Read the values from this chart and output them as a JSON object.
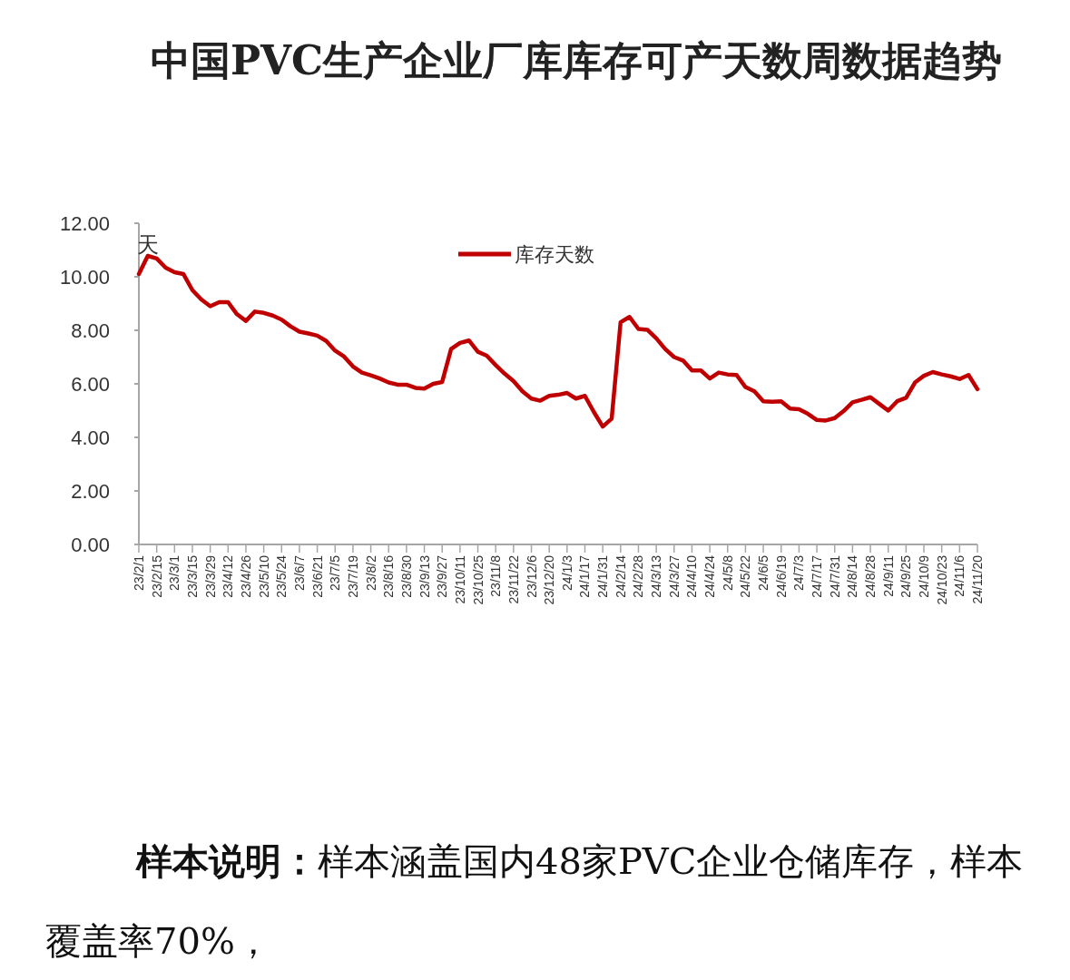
{
  "chart_data": {
    "type": "line",
    "title": "中国PVC生产企业厂库库存可产天数周数据趋势",
    "ylabel": "天",
    "annotations": [
      "样本说明：",
      "样本涵盖国内48家PVC企业仓储库存，样本覆盖率70%，"
    ],
    "categories": [
      "23/2/1",
      null,
      "23/2/15",
      null,
      "23/3/1",
      null,
      "23/3/15",
      null,
      "23/3/29",
      null,
      "23/4/12",
      null,
      "23/4/26",
      null,
      "23/5/10",
      null,
      "23/5/24",
      null,
      "23/6/7",
      null,
      "23/6/21",
      null,
      "23/7/5",
      null,
      "23/7/19",
      null,
      "23/8/2",
      null,
      "23/8/16",
      null,
      "23/8/30",
      null,
      "23/9/13",
      null,
      "23/9/27",
      null,
      "23/10/11",
      null,
      "23/10/25",
      null,
      "23/11/8",
      null,
      "23/11/22",
      null,
      "23/12/6",
      null,
      "23/12/20",
      null,
      "24/1/3",
      null,
      "24/1/17",
      null,
      "24/1/31",
      null,
      "24/2/14",
      null,
      "24/2/28",
      null,
      "24/3/13",
      null,
      "24/3/27",
      null,
      "24/4/10",
      null,
      "24/4/24",
      null,
      "24/5/8",
      null,
      "24/5/22",
      null,
      "24/6/5",
      null,
      "24/6/19",
      null,
      "24/7/3",
      null,
      "24/7/17",
      null,
      "24/7/31",
      null,
      "24/8/14",
      null,
      "24/8/28",
      null,
      "24/9/11",
      null,
      "24/9/25",
      null,
      "24/10/9",
      null,
      "24/10/23",
      null,
      "24/11/6",
      null,
      "24/11/20"
    ],
    "series": [
      {
        "name": "库存天数",
        "color": "#c00000",
        "values": [
          10.1,
          10.78,
          10.68,
          10.34,
          10.17,
          10.1,
          9.5,
          9.15,
          8.9,
          9.05,
          9.05,
          8.6,
          8.35,
          8.7,
          8.65,
          8.55,
          8.4,
          8.15,
          7.95,
          7.88,
          7.8,
          7.6,
          7.24,
          7.02,
          6.65,
          6.42,
          6.32,
          6.2,
          6.05,
          5.97,
          5.97,
          5.85,
          5.82,
          6.0,
          6.07,
          7.3,
          7.53,
          7.62,
          7.2,
          7.05,
          6.7,
          6.38,
          6.1,
          5.72,
          5.45,
          5.37,
          5.55,
          5.59,
          5.66,
          5.45,
          5.55,
          4.95,
          4.4,
          4.7,
          8.3,
          8.5,
          8.05,
          8.02,
          7.7,
          7.3,
          7.0,
          6.87,
          6.5,
          6.5,
          6.2,
          6.42,
          6.35,
          6.33,
          5.88,
          5.72,
          5.35,
          5.33,
          5.35,
          5.08,
          5.05,
          4.88,
          4.65,
          4.63,
          4.72,
          4.98,
          5.31,
          5.4,
          5.5,
          5.25,
          5.0,
          5.35,
          5.48,
          6.05,
          6.3,
          6.44,
          6.35,
          6.28,
          6.18,
          6.33,
          5.8
        ]
      }
    ],
    "ylim": [
      0,
      12
    ],
    "yticks": [
      {
        "value": 0,
        "label": "0.00"
      },
      {
        "value": 2,
        "label": "2.00"
      },
      {
        "value": 4,
        "label": "4.00"
      },
      {
        "value": 6,
        "label": "6.00"
      },
      {
        "value": 8,
        "label": "8.00"
      },
      {
        "value": 10,
        "label": "10.00"
      },
      {
        "value": 12,
        "label": "12.00"
      }
    ],
    "grid": false,
    "legend": "top",
    "marker": "none",
    "line_style": "solid"
  }
}
